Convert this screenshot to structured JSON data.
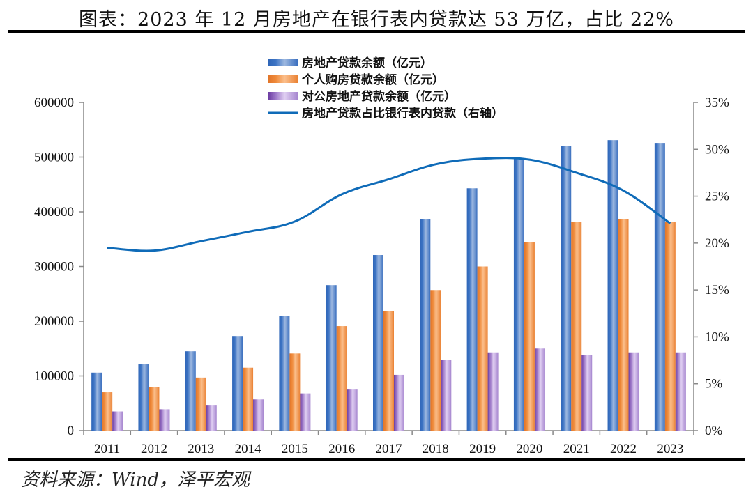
{
  "header": {
    "title": "图表：2023 年 12 月房地产在银行表内贷款达 53 万亿，占比 22%"
  },
  "footer": {
    "source": "资料来源：Wind，泽平宏观"
  },
  "colors": {
    "blue_bar": "#3d74c4",
    "orange_bar": "#ef8a3a",
    "purple_bar": "#8a5bb8",
    "line": "#0f6bb8",
    "axis": "#888888"
  },
  "chart_data": {
    "type": "bar",
    "title": "图表：2023 年 12 月房地产在银行表内贷款达 53 万亿，占比 22%",
    "xlabel": "",
    "ylabel": "",
    "y2label": "",
    "categories": [
      "2011",
      "2012",
      "2013",
      "2014",
      "2015",
      "2016",
      "2017",
      "2018",
      "2019",
      "2020",
      "2021",
      "2022",
      "2023"
    ],
    "ylim": [
      0,
      600000
    ],
    "y_ticks": [
      "0",
      "100000",
      "200000",
      "300000",
      "400000",
      "500000",
      "600000"
    ],
    "y_tick_values": [
      0,
      100000,
      200000,
      300000,
      400000,
      500000,
      600000
    ],
    "y2lim": [
      0,
      0.35
    ],
    "y2_ticks": [
      "0%",
      "5%",
      "10%",
      "15%",
      "20%",
      "25%",
      "30%",
      "35%"
    ],
    "y2_tick_values": [
      0,
      0.05,
      0.1,
      0.15,
      0.2,
      0.25,
      0.3,
      0.35
    ],
    "grid": false,
    "legend_position": "top-center",
    "series": [
      {
        "name": "房地产贷款余额（亿元）",
        "type": "bar",
        "axis": "left",
        "color": "#3d74c4",
        "values": [
          106000,
          121000,
          145000,
          173000,
          209000,
          266000,
          321000,
          386000,
          443000,
          497000,
          521000,
          531000,
          526000
        ]
      },
      {
        "name": "个人购房贷款余额（亿元）",
        "type": "bar",
        "axis": "left",
        "color": "#ef8a3a",
        "values": [
          70000,
          80000,
          97000,
          115000,
          141000,
          191000,
          218000,
          257000,
          300000,
          344000,
          382000,
          387000,
          381000
        ]
      },
      {
        "name": "对公房地产贷款余额（亿元）",
        "type": "bar",
        "axis": "left",
        "color": "#8a5bb8",
        "values": [
          35000,
          39000,
          47000,
          57000,
          68000,
          75000,
          102000,
          129000,
          143000,
          150000,
          138000,
          143000,
          143000
        ]
      },
      {
        "name": "房地产贷款占比银行表内贷款（右轴）",
        "type": "line",
        "axis": "right",
        "color": "#0f6bb8",
        "values": [
          0.195,
          0.192,
          0.202,
          0.212,
          0.223,
          0.252,
          0.268,
          0.284,
          0.29,
          0.289,
          0.275,
          0.256,
          0.221
        ]
      }
    ]
  }
}
